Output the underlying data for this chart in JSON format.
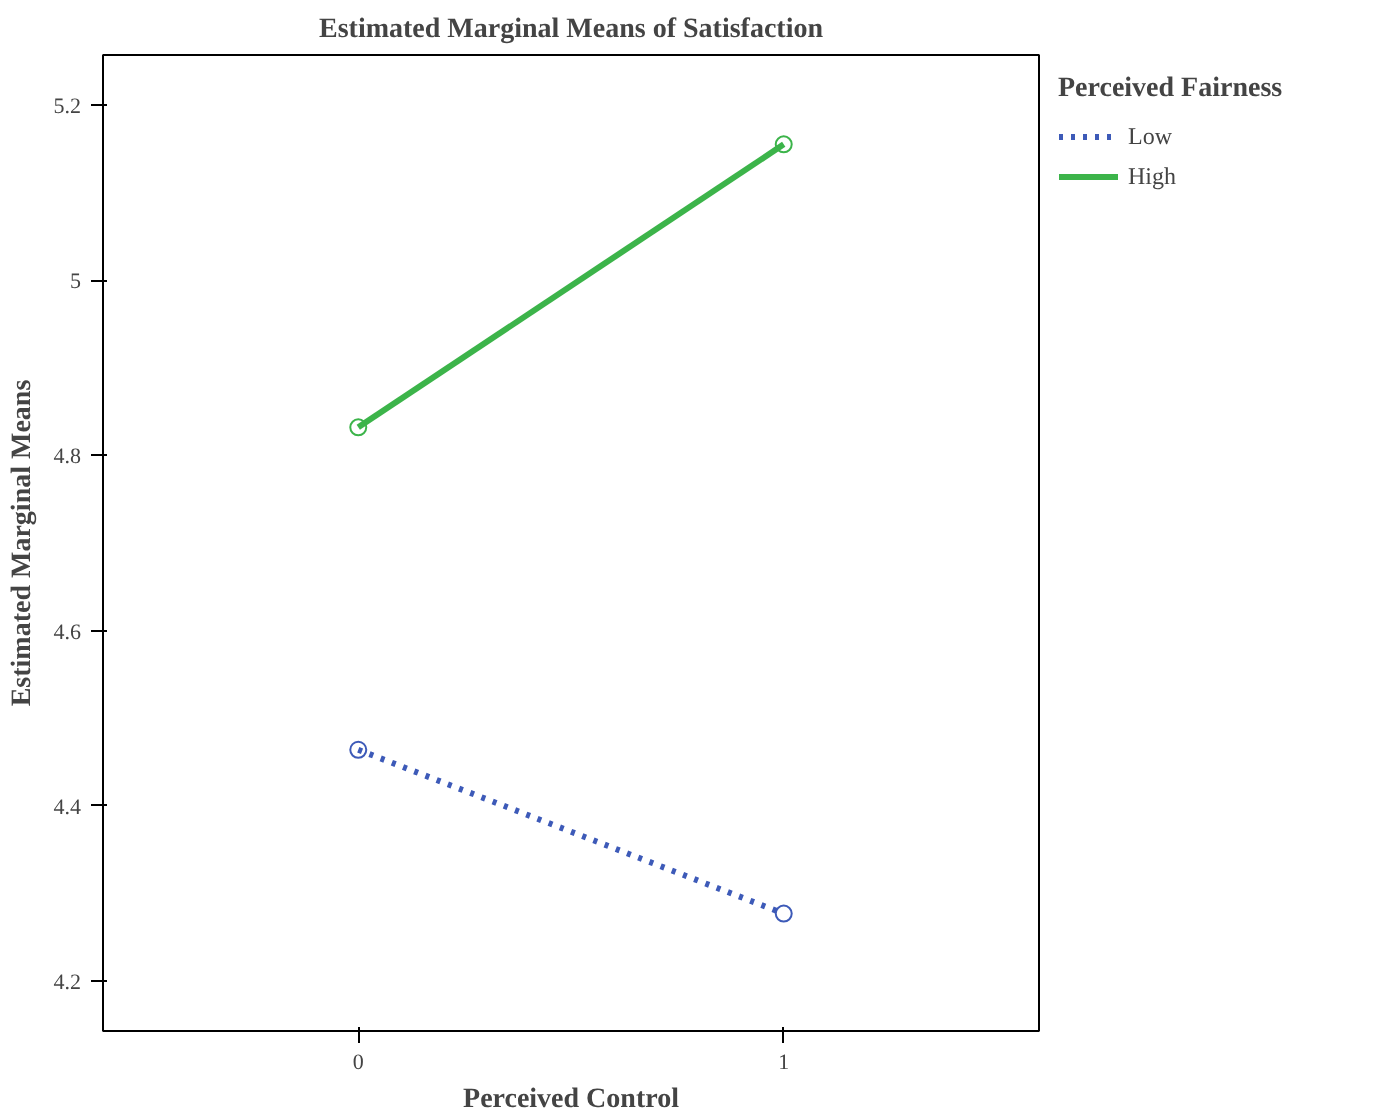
{
  "chart_data": {
    "type": "line",
    "title": "Estimated Marginal Means of Satisfaction",
    "xlabel": "Perceived Control",
    "ylabel": "Estimated Marginal Means",
    "legend_title": "Perceived Fairness",
    "x": [
      0,
      1
    ],
    "xlim": [
      -0.6,
      1.6
    ],
    "xticks": [
      0,
      1
    ],
    "ylim": [
      4.143,
      5.257
    ],
    "yticks": [
      4.2,
      4.4,
      4.6,
      4.8,
      {
        "value": 5,
        "label": "5"
      },
      5.2
    ],
    "series": [
      {
        "name": "Low",
        "color": "#3d5ab8",
        "values": [
          4.464,
          4.277
        ],
        "line_style": "dotted"
      },
      {
        "name": "High",
        "color": "#3cb44a",
        "values": [
          4.832,
          5.155
        ],
        "line_style": "solid"
      }
    ],
    "marker": "circle",
    "legend": "top right",
    "grid": false
  }
}
